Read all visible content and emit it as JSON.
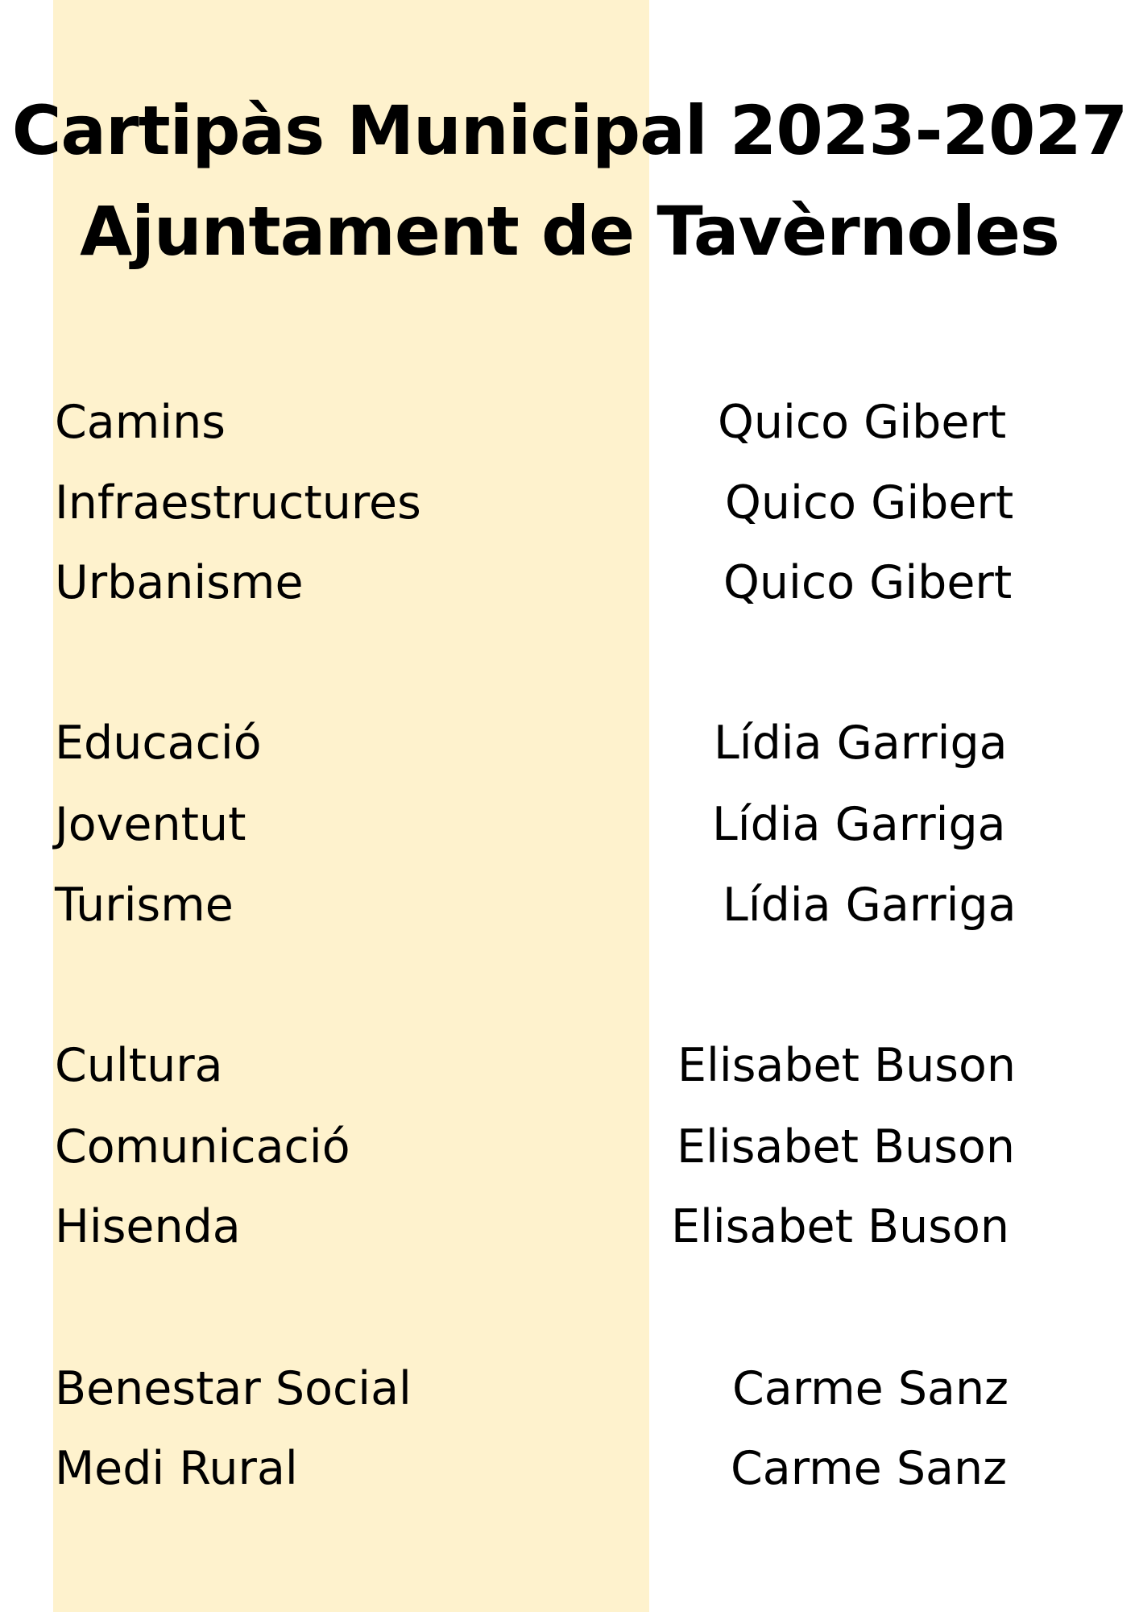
{
  "title": {
    "line1": "Cartipàs Municipal 2023-2027",
    "line2": "Ajuntament de Tavèrnoles"
  },
  "colors": {
    "band": "#fef2cd",
    "text": "#000000"
  },
  "assignments": [
    {
      "area": "Camins",
      "person": "Quico Gibert"
    },
    {
      "area": "Infraestructures",
      "person": "Quico Gibert"
    },
    {
      "area": "Urbanisme",
      "person": "Quico Gibert"
    },
    {
      "area": "Educació",
      "person": "Lídia Garriga"
    },
    {
      "area": "Joventut",
      "person": "Lídia Garriga"
    },
    {
      "area": "Turisme",
      "person": "Lídia Garriga"
    },
    {
      "area": "Cultura",
      "person": "Elisabet Buson"
    },
    {
      "area": "Comunicació",
      "person": "Elisabet Buson"
    },
    {
      "area": "Hisenda",
      "person": "Elisabet Buson"
    },
    {
      "area": "Benestar Social",
      "person": "Carme Sanz"
    },
    {
      "area": "Medi Rural",
      "person": "Carme Sanz"
    }
  ]
}
